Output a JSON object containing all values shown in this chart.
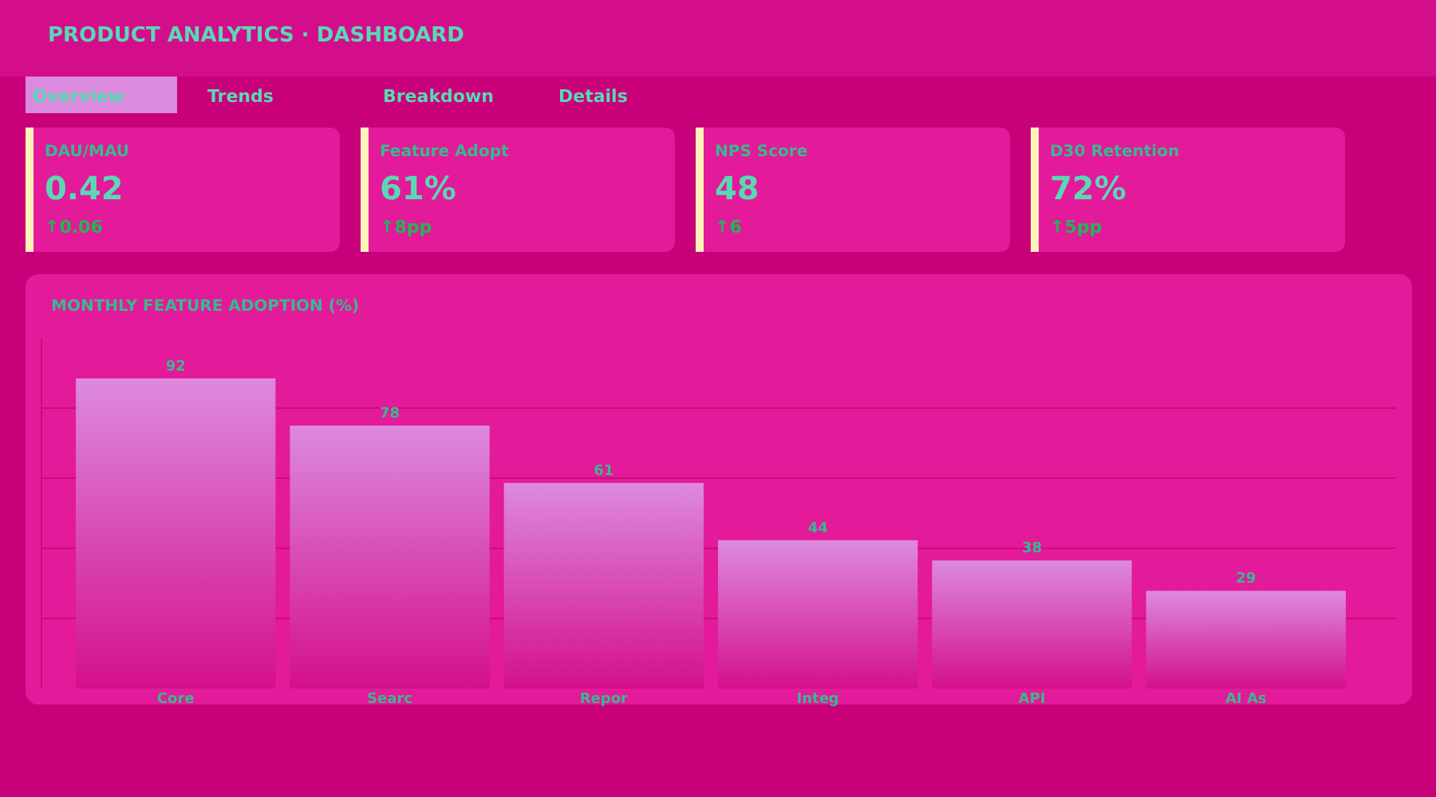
{
  "chart_data": [
    {
      "type": "other",
      "title": "PRODUCT ANALYTICS · DASHBOARD",
      "categories": [
        "Overview",
        "Trends",
        "Breakdown",
        "Details"
      ]
    },
    {
      "type": "other",
      "title": "DAU/MAU",
      "annotations": [
        "0.42",
        "↑0.06"
      ]
    },
    {
      "type": "other",
      "title": "Feature Adopt",
      "annotations": [
        "61%",
        "↑8pp"
      ]
    },
    {
      "type": "other",
      "title": "NPS Score",
      "annotations": [
        "48",
        "↑6"
      ]
    },
    {
      "type": "other",
      "title": "D30 Retention",
      "annotations": [
        "72%",
        "↑5pp"
      ]
    },
    {
      "type": "bar",
      "title": "MONTHLY FEATURE ADOPTION (%)",
      "categories": [
        "Core",
        "Searc",
        "Repor",
        "Integ",
        "API",
        "AI As"
      ],
      "values": [
        92,
        78,
        61,
        44,
        38,
        29
      ],
      "color": "#dc8ade",
      "ylim": [
        0,
        104
      ],
      "yticks": [
        {
          "value": 20.8,
          "label": null
        },
        {
          "value": 41.6,
          "label": null
        },
        {
          "value": 62.4,
          "label": null
        },
        {
          "value": 83.2,
          "label": null
        }
      ],
      "grid": "y",
      "tick_labels": "x",
      "data_labels": true
    }
  ]
}
